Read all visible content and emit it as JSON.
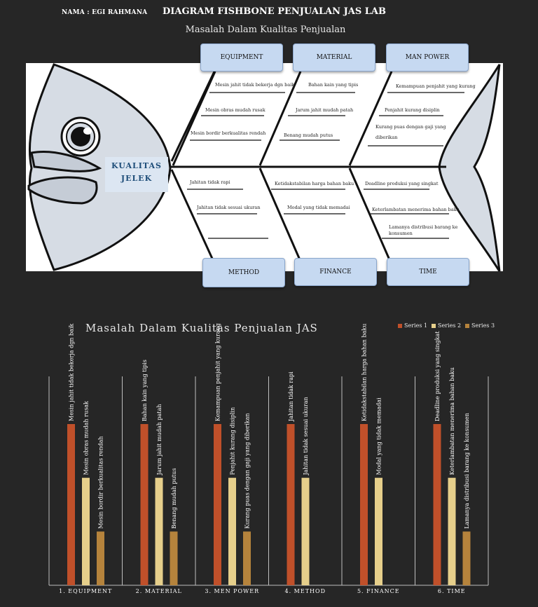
{
  "header": {
    "name": "NAMA : EGI RAHMANA",
    "title": "DIAGRAM FISHBONE PENJUALAN JAS LAB",
    "subtitle": "Masalah Dalam Kualitas Penjualan"
  },
  "fishbone": {
    "effect": [
      "KUALITAS",
      "JELEK"
    ],
    "top_categories": [
      "EQUIPMENT",
      "MATERIAL",
      "MAN POWER"
    ],
    "bottom_categories": [
      "METHOD",
      "FINANCE",
      "TIME"
    ],
    "causes": {
      "equipment": [
        "Mesin jahit tidak bekerja dgn baik",
        "Mesin obras mudah rusak",
        "Mesin bordir berkualitas rendah"
      ],
      "material": [
        "Bahan kain yang tipis",
        "Jarum jahit mudah patah",
        "Benang mudah putus"
      ],
      "man_power": [
        "Kemampuan penjahit yang kurang",
        "Penjahit kurang disiplin",
        "Kurang puas dengan gaji yang",
        "diberikan"
      ],
      "method": [
        "Jahitan tidak rapi",
        "Jahitan tidak sesuai ukuran"
      ],
      "finance": [
        "Ketidakstabilan harga bahan baku",
        "Modal yang tidak memadai"
      ],
      "time": [
        "Deadline produksi yang singkat",
        "Keterlambatan  menerima bahan baku",
        "Lamanya distribusi barang ke",
        "konsumen"
      ]
    },
    "colors": {
      "box_fill": "#c6d9f1",
      "fish_fill": "#d6dce4",
      "bone": "#000000"
    }
  },
  "chart_data": {
    "type": "bar",
    "title": "Masalah Dalam Kualitas Penjualan JAS",
    "legend_position": "top-right",
    "categories": [
      "1. EQUIPMENT",
      "2. MATERIAL",
      "3. MEN POWER",
      "4. METHOD",
      "5. FINANCE",
      "6. TIME"
    ],
    "series": [
      {
        "name": "Series 1",
        "color": "#c0502a",
        "values": [
          3,
          3,
          3,
          3,
          3,
          3
        ]
      },
      {
        "name": "Series 2",
        "color": "#e6cf8b",
        "values": [
          2,
          2,
          2,
          2,
          2,
          2
        ]
      },
      {
        "name": "Series 3",
        "color": "#b5833c",
        "values": [
          1,
          1,
          1,
          null,
          null,
          1
        ]
      }
    ],
    "bar_labels": [
      [
        "Mesin jahit tidak bekerja dgn baik",
        "Mesin obras mudah rusak",
        "Mesin bordir berkualitas rendah"
      ],
      [
        "Bahan kain yang tipis",
        "Jarum jahit mudah patah",
        "Benang mudah putus"
      ],
      [
        "Kemampuan penjahit yang kurang",
        "Penjahit kurang disiplin",
        "Kurang puas dengan gaji yang diberikan"
      ],
      [
        "Jahitan tidak rapi",
        "Jahitan tidak sesuai ukuran",
        ""
      ],
      [
        "Ketidakstabilan harga bahan baku",
        "Modal yang tidak memadai",
        ""
      ],
      [
        "Deadline produksi yang singkat",
        "Keterlambatan  menerima bahan baku",
        "Lamanya distribusi barang ke konsumen"
      ]
    ],
    "ylim": [
      0,
      3.3
    ],
    "grid": false
  }
}
